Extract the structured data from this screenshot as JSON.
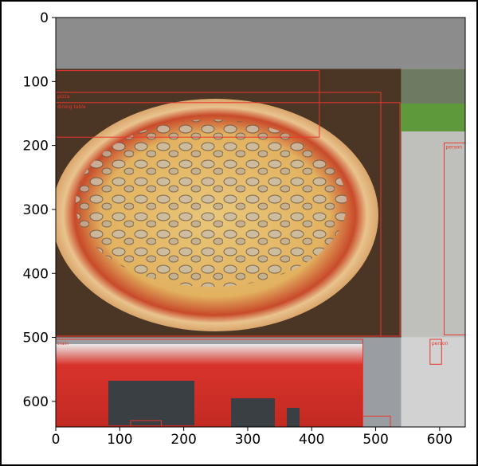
{
  "chart_data": {
    "type": "image_with_bounding_boxes",
    "title": "",
    "xlabel": "",
    "ylabel": "",
    "xlim": [
      0,
      640
    ],
    "ylim": [
      640,
      0
    ],
    "x_ticks": [
      0,
      100,
      200,
      300,
      400,
      500,
      600
    ],
    "y_ticks": [
      0,
      100,
      200,
      300,
      400,
      500,
      600
    ],
    "grid": false,
    "tiles": [
      {
        "name": "padding",
        "x0": 0,
        "y0": 0,
        "x1": 640,
        "y1": 80,
        "fill": "#8c8c8c"
      },
      {
        "name": "pizza-photo",
        "x0": 0,
        "y0": 80,
        "x1": 540,
        "y1": 500,
        "fill": "#4b3524"
      },
      {
        "name": "park-photo",
        "x0": 540,
        "y0": 80,
        "x1": 640,
        "y1": 175,
        "fill": "#6f7a62"
      },
      {
        "name": "street-photo",
        "x0": 540,
        "y0": 175,
        "x1": 640,
        "y1": 500,
        "fill": "#bfc0bc"
      },
      {
        "name": "train-photo",
        "x0": 0,
        "y0": 500,
        "x1": 540,
        "y1": 640,
        "fill": "#9a9ea2"
      },
      {
        "name": "crowd-photo",
        "x0": 540,
        "y0": 500,
        "x1": 640,
        "y1": 640,
        "fill": "#d2d2d2"
      }
    ],
    "boxes": [
      {
        "label": "",
        "x0": 0,
        "y0": 83,
        "x1": 412,
        "y1": 187
      },
      {
        "label": "pizza",
        "x0": 0,
        "y0": 117,
        "x1": 508,
        "y1": 498
      },
      {
        "label": "dining table",
        "x0": 0,
        "y0": 133,
        "x1": 538,
        "y1": 498
      },
      {
        "label": "person",
        "x0": 607,
        "y0": 196,
        "x1": 640,
        "y1": 496
      },
      {
        "label": "train",
        "x0": 0,
        "y0": 503,
        "x1": 480,
        "y1": 640
      },
      {
        "label": "person",
        "x0": 585,
        "y0": 503,
        "x1": 603,
        "y1": 542
      },
      {
        "label": "",
        "x0": 480,
        "y0": 623,
        "x1": 523,
        "y1": 640
      },
      {
        "label": "",
        "x0": 117,
        "y0": 630,
        "x1": 165,
        "y1": 640
      }
    ],
    "box_color": "#e8372e"
  }
}
